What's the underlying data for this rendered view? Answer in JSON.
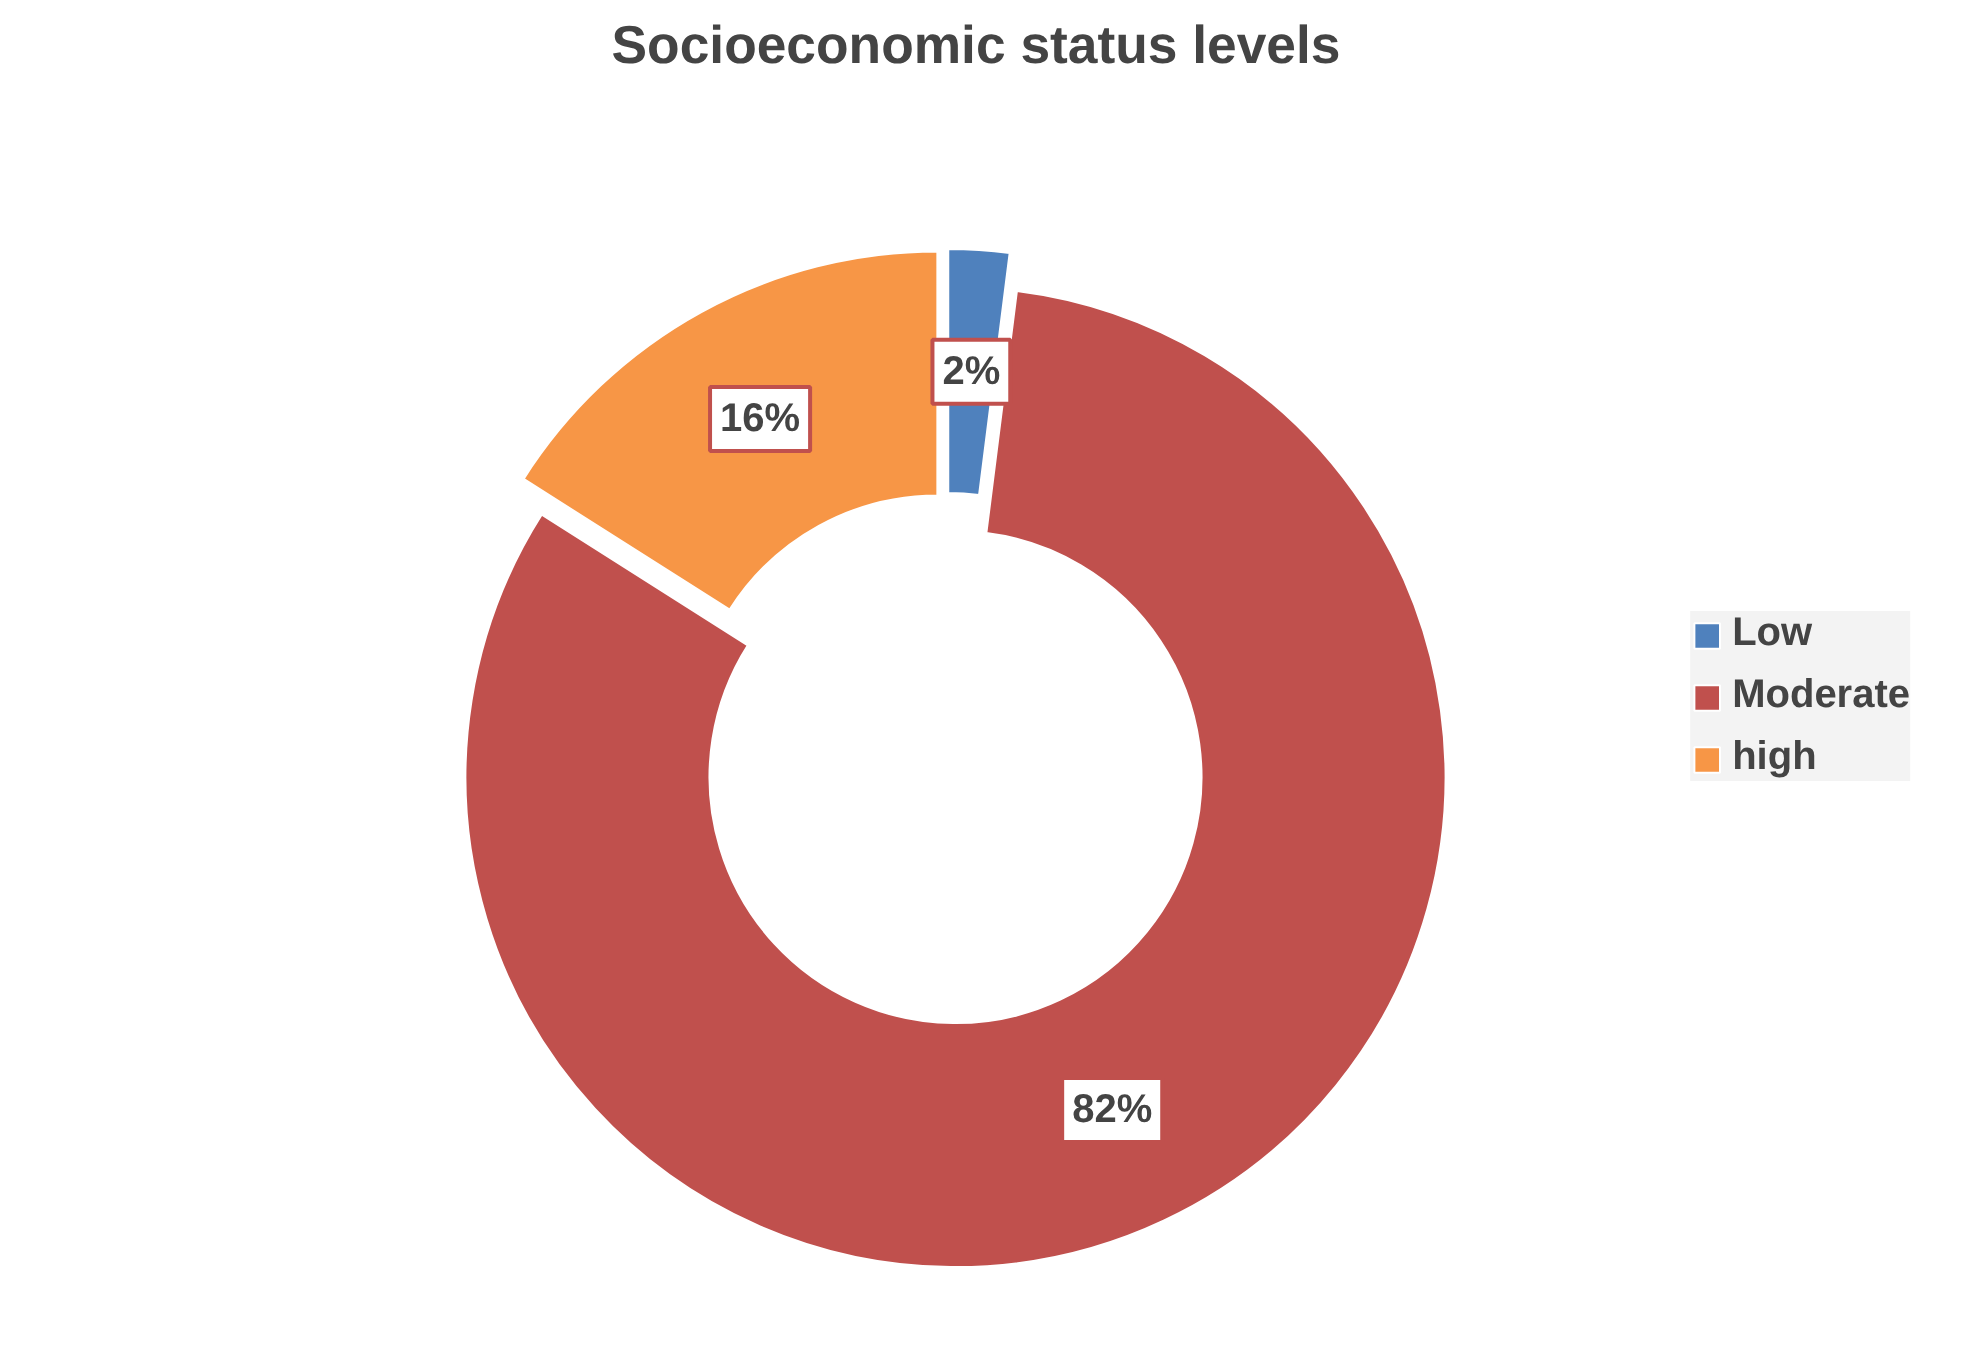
{
  "chart_data": {
    "type": "donut",
    "title": "Socioeconomic status levels",
    "categories": [
      "Low",
      "Moderate",
      "high"
    ],
    "values": [
      2,
      82,
      16
    ],
    "colors": [
      "#4f81bd",
      "#c0504d",
      "#f79646"
    ],
    "value_labels": [
      "2%",
      "82%",
      "16%"
    ],
    "legend": "right"
  }
}
